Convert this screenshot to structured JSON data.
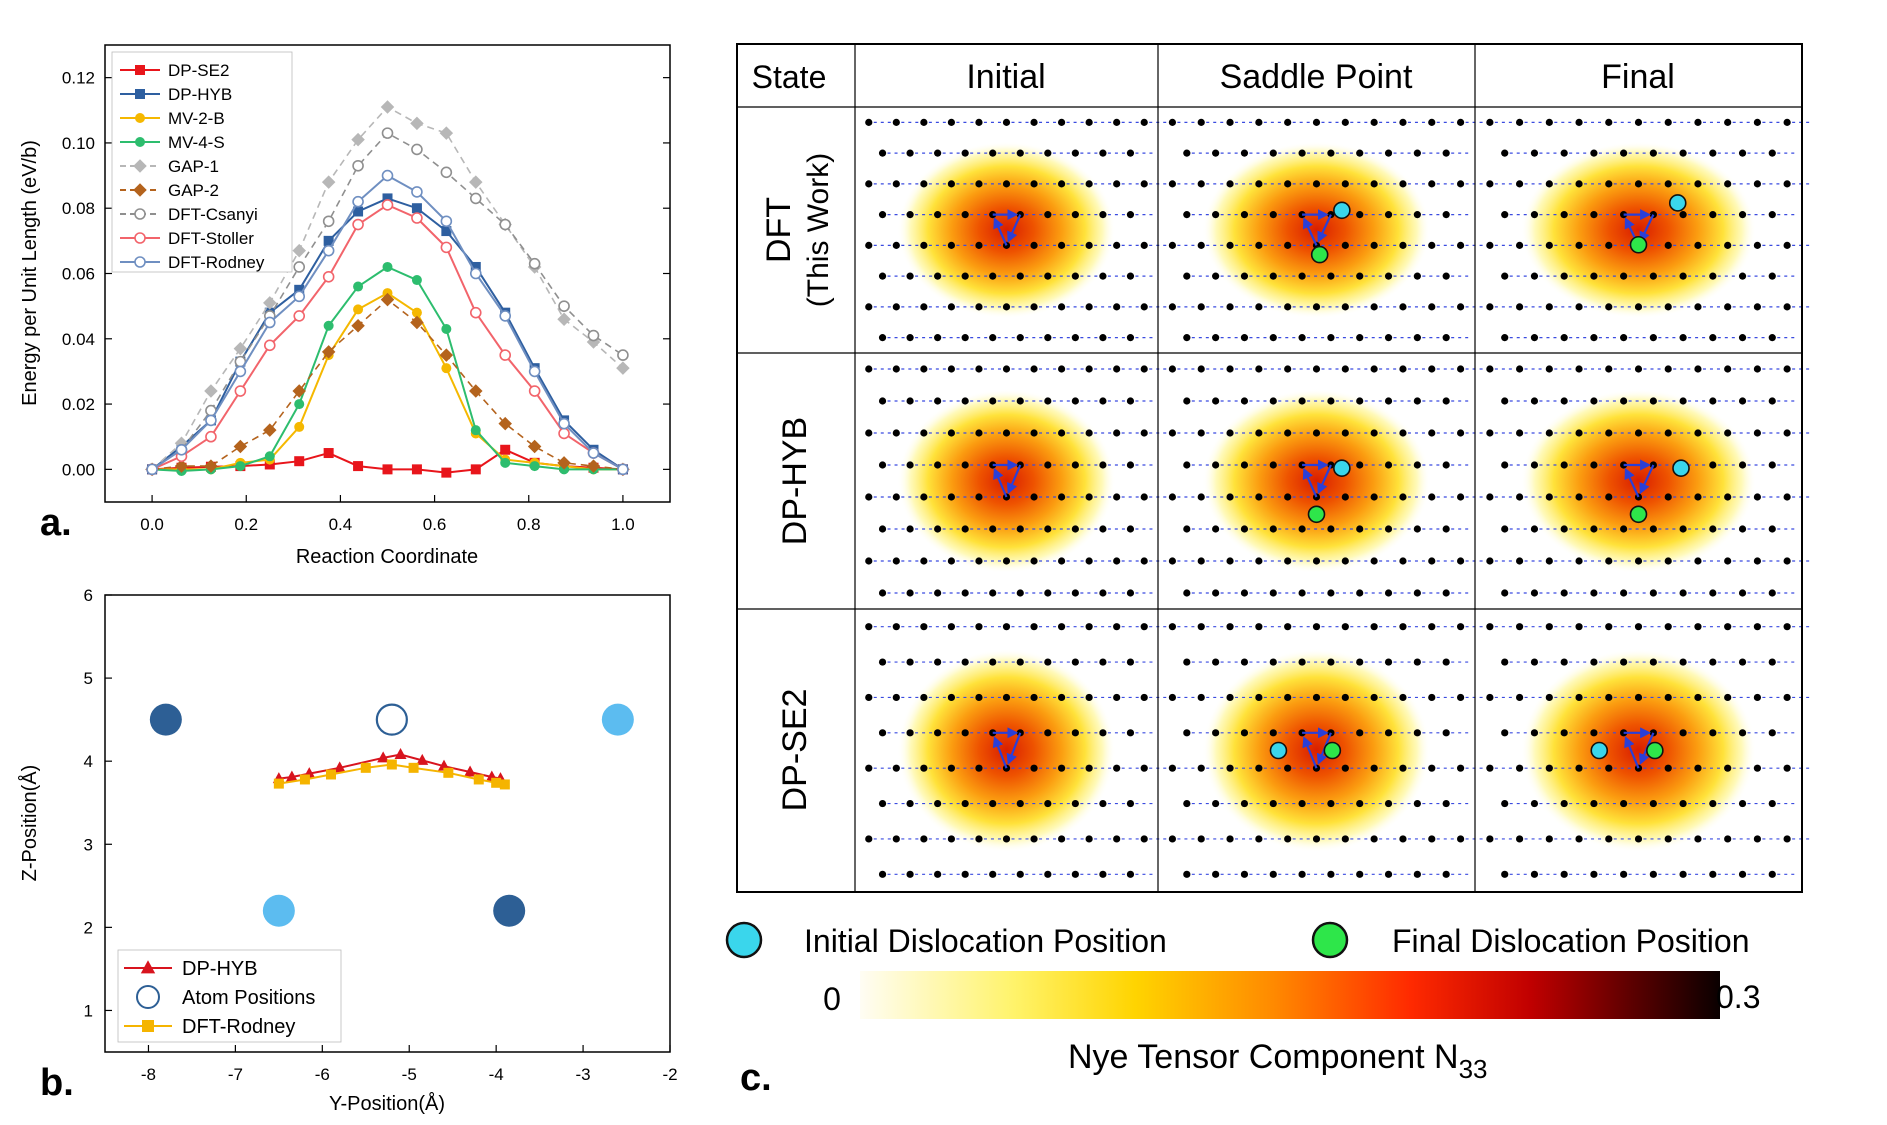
{
  "panel_labels": {
    "a": "a.",
    "b": "b.",
    "c": "c."
  },
  "chart_data": [
    {
      "id": "a",
      "type": "line",
      "xlabel": "Reaction Coordinate",
      "ylabel": "Energy per Unit Length (eV/b)",
      "xlim": [
        -0.1,
        1.1
      ],
      "ylim": [
        -0.01,
        0.13
      ],
      "xticks": [
        "0.0",
        "0.2",
        "0.4",
        "0.6",
        "0.8",
        "1.0"
      ],
      "xtick_values": [
        0,
        0.2,
        0.4,
        0.6,
        0.8,
        1.0
      ],
      "yticks": [
        "0.00",
        "0.02",
        "0.04",
        "0.06",
        "0.08",
        "0.10",
        "0.12"
      ],
      "ytick_values": [
        0,
        0.02,
        0.04,
        0.06,
        0.08,
        0.1,
        0.12
      ],
      "legend_position": "top-left",
      "series": [
        {
          "name": "DP-SE2",
          "color": "#e8151b",
          "marker": "square",
          "dashed": false,
          "x": [
            0,
            0.0625,
            0.125,
            0.1875,
            0.25,
            0.3125,
            0.375,
            0.4375,
            0.5,
            0.5625,
            0.625,
            0.6875,
            0.75,
            0.8125,
            0.875,
            0.9375,
            1.0
          ],
          "y": [
            0,
            0.0005,
            0.0008,
            0.001,
            0.0015,
            0.0025,
            0.005,
            0.001,
            0.0,
            0.0,
            -0.001,
            0.0,
            0.006,
            0.002,
            0.001,
            0.0005,
            0
          ]
        },
        {
          "name": "DP-HYB",
          "color": "#2e5fa0",
          "marker": "square",
          "dashed": false,
          "x": [
            0,
            0.0625,
            0.125,
            0.1875,
            0.25,
            0.3125,
            0.375,
            0.4375,
            0.5,
            0.5625,
            0.625,
            0.6875,
            0.75,
            0.8125,
            0.875,
            0.9375,
            1.0
          ],
          "y": [
            0,
            0.007,
            0.015,
            0.033,
            0.048,
            0.055,
            0.07,
            0.079,
            0.083,
            0.08,
            0.073,
            0.062,
            0.048,
            0.031,
            0.015,
            0.006,
            0
          ]
        },
        {
          "name": "MV-2-B",
          "color": "#f5b800",
          "marker": "circle",
          "dashed": false,
          "x": [
            0,
            0.0625,
            0.125,
            0.1875,
            0.25,
            0.3125,
            0.375,
            0.4375,
            0.5,
            0.5625,
            0.625,
            0.6875,
            0.75,
            0.8125,
            0.875,
            0.9375,
            1.0
          ],
          "y": [
            0,
            0,
            0,
            0.002,
            0.003,
            0.013,
            0.035,
            0.049,
            0.054,
            0.048,
            0.031,
            0.011,
            0.003,
            0.002,
            0.001,
            0,
            0
          ]
        },
        {
          "name": "MV-4-S",
          "color": "#2dbd6e",
          "marker": "circle",
          "dashed": false,
          "x": [
            0,
            0.0625,
            0.125,
            0.1875,
            0.25,
            0.3125,
            0.375,
            0.4375,
            0.5,
            0.5625,
            0.625,
            0.6875,
            0.75,
            0.8125,
            0.875,
            0.9375,
            1.0
          ],
          "y": [
            0,
            -0.0005,
            0,
            0.001,
            0.004,
            0.02,
            0.044,
            0.056,
            0.062,
            0.058,
            0.043,
            0.012,
            0.002,
            0.001,
            0,
            0,
            0
          ]
        },
        {
          "name": "GAP-1",
          "color": "#b7b7b7",
          "marker": "diamond",
          "dashed": true,
          "x": [
            0,
            0.0625,
            0.125,
            0.1875,
            0.25,
            0.3125,
            0.375,
            0.4375,
            0.5,
            0.5625,
            0.625,
            0.6875,
            0.75,
            0.8125,
            0.875,
            0.9375,
            1.0
          ],
          "y": [
            0,
            0.008,
            0.024,
            0.037,
            0.051,
            0.067,
            0.088,
            0.101,
            0.111,
            0.106,
            0.103,
            0.088,
            0.075,
            0.062,
            0.046,
            0.039,
            0.031
          ]
        },
        {
          "name": "GAP-2",
          "color": "#b4631d",
          "marker": "diamond",
          "dashed": true,
          "x": [
            0,
            0.0625,
            0.125,
            0.1875,
            0.25,
            0.3125,
            0.375,
            0.4375,
            0.5,
            0.5625,
            0.625,
            0.6875,
            0.75,
            0.8125,
            0.875,
            0.9375,
            1.0
          ],
          "y": [
            0,
            0.001,
            0.001,
            0.007,
            0.012,
            0.024,
            0.036,
            0.044,
            0.052,
            0.045,
            0.035,
            0.024,
            0.014,
            0.007,
            0.002,
            0.001,
            0
          ]
        },
        {
          "name": "DFT-Csanyi",
          "color": "#8f8f8f",
          "marker": "circle-open",
          "dashed": true,
          "x": [
            0,
            0.0625,
            0.125,
            0.1875,
            0.25,
            0.3125,
            0.375,
            0.4375,
            0.5,
            0.5625,
            0.625,
            0.6875,
            0.75,
            0.8125,
            0.875,
            0.9375,
            1.0
          ],
          "y": [
            0,
            0.006,
            0.018,
            0.033,
            0.047,
            0.062,
            0.076,
            0.093,
            0.103,
            0.098,
            0.091,
            0.083,
            0.075,
            0.063,
            0.05,
            0.041,
            0.035
          ]
        },
        {
          "name": "DFT-Stoller",
          "color": "#f2646b",
          "marker": "circle-open",
          "dashed": false,
          "x": [
            0,
            0.0625,
            0.125,
            0.1875,
            0.25,
            0.3125,
            0.375,
            0.4375,
            0.5,
            0.5625,
            0.625,
            0.6875,
            0.75,
            0.8125,
            0.875,
            0.9375,
            1.0
          ],
          "y": [
            0,
            0.004,
            0.01,
            0.024,
            0.038,
            0.047,
            0.059,
            0.075,
            0.081,
            0.077,
            0.068,
            0.048,
            0.035,
            0.024,
            0.011,
            0.005,
            0
          ]
        },
        {
          "name": "DFT-Rodney",
          "color": "#6f8fc1",
          "marker": "circle-open",
          "dashed": false,
          "x": [
            0,
            0.0625,
            0.125,
            0.1875,
            0.25,
            0.3125,
            0.375,
            0.4375,
            0.5,
            0.5625,
            0.625,
            0.6875,
            0.75,
            0.8125,
            0.875,
            0.9375,
            1.0
          ],
          "y": [
            0,
            0.006,
            0.015,
            0.03,
            0.045,
            0.053,
            0.067,
            0.082,
            0.09,
            0.085,
            0.076,
            0.06,
            0.047,
            0.03,
            0.014,
            0.005,
            0
          ]
        }
      ]
    },
    {
      "id": "b",
      "type": "scatter",
      "xlabel": "Y-Position(Å)",
      "ylabel": "Z-Position(Å)",
      "xlim": [
        -8.5,
        -2
      ],
      "ylim": [
        0.5,
        6
      ],
      "xticks": [
        "-8",
        "-7",
        "-6",
        "-5",
        "-4",
        "-3",
        "-2"
      ],
      "xtick_values": [
        -8,
        -7,
        -6,
        -5,
        -4,
        -3,
        -2
      ],
      "yticks": [
        "1",
        "2",
        "3",
        "4",
        "5",
        "6"
      ],
      "ytick_values": [
        1,
        2,
        3,
        4,
        5,
        6
      ],
      "legend_position": "bottom-left",
      "atoms": [
        {
          "y": -7.8,
          "z": 4.5,
          "style": "dark"
        },
        {
          "y": -5.2,
          "z": 4.5,
          "style": "open"
        },
        {
          "y": -2.6,
          "z": 4.5,
          "style": "light"
        },
        {
          "y": -6.5,
          "z": 2.2,
          "style": "light"
        },
        {
          "y": -3.85,
          "z": 2.2,
          "style": "dark"
        }
      ],
      "atom_colors": {
        "dark": "#2d5f95",
        "light": "#5cbcf0",
        "open": "#2d5f95"
      },
      "series": [
        {
          "name": "DP-HYB",
          "color": "#d8141e",
          "marker": "triangle",
          "x": [
            -6.5,
            -6.35,
            -6.15,
            -5.8,
            -5.3,
            -5.1,
            -4.85,
            -4.6,
            -4.3,
            -4.05,
            -3.95
          ],
          "y": [
            3.79,
            3.81,
            3.85,
            3.92,
            4.04,
            4.08,
            4.01,
            3.94,
            3.87,
            3.81,
            3.79
          ]
        },
        {
          "name": "Atom Positions",
          "color": "#2d5f95",
          "marker": "circle-open",
          "x": [],
          "y": []
        },
        {
          "name": "DFT-Rodney",
          "color": "#f5b400",
          "marker": "square",
          "x": [
            -6.5,
            -6.2,
            -5.9,
            -5.5,
            -5.2,
            -4.95,
            -4.55,
            -4.2,
            -4.0,
            -3.9
          ],
          "y": [
            3.73,
            3.78,
            3.84,
            3.92,
            3.96,
            3.92,
            3.86,
            3.78,
            3.74,
            3.72
          ]
        }
      ]
    }
  ],
  "panel_c": {
    "header_state": "State",
    "columns": [
      "Initial",
      "Saddle Point",
      "Final"
    ],
    "rows": [
      {
        "label": "DFT",
        "sublabel": "(This Work)"
      },
      {
        "label": "DP-HYB",
        "sublabel": ""
      },
      {
        "label": "DP-SE2",
        "sublabel": ""
      }
    ],
    "legend": {
      "initial": "Initial Dislocation Position",
      "final": "Final Dislocation Position",
      "initial_color": "#3ad6ec",
      "final_color": "#2ee64a"
    },
    "colorbar": {
      "min": "0",
      "max": "0.3",
      "title": "Nye Tensor Component N",
      "title_sub": "33"
    }
  }
}
